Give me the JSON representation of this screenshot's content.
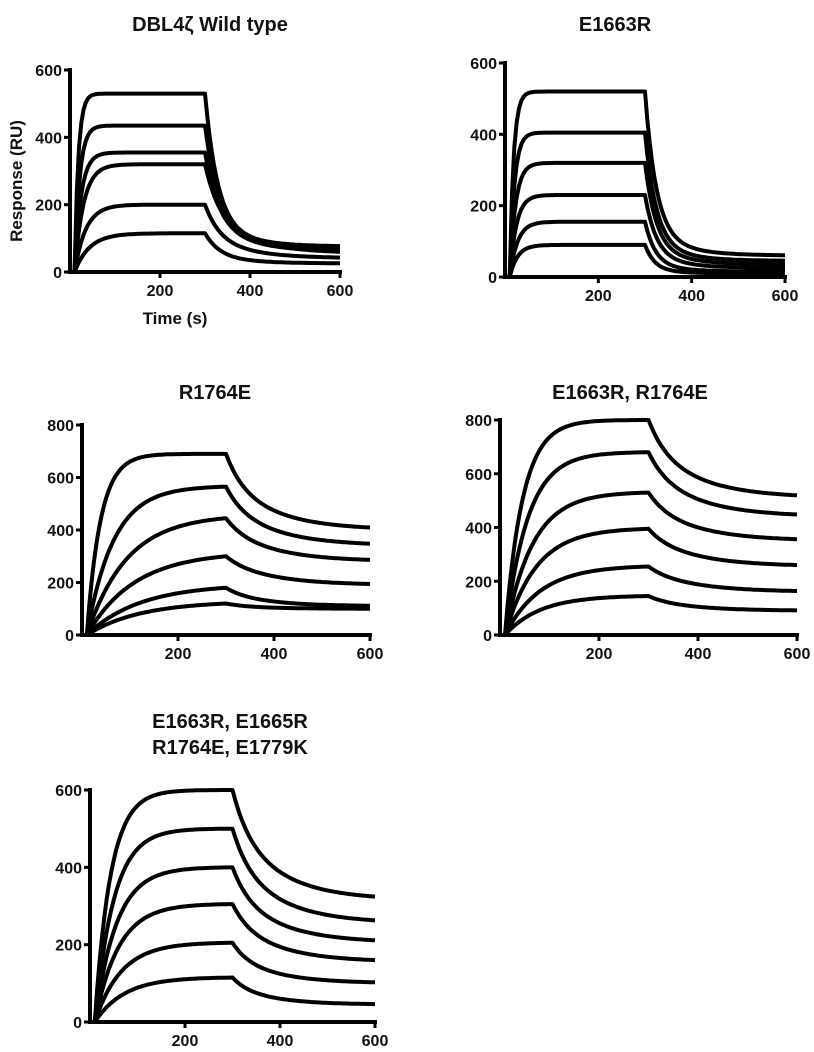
{
  "chart_data": [
    {
      "type": "line",
      "title": "DBL4ζ Wild type",
      "xlabel": "Time (s)",
      "ylabel": "Response (RU)",
      "xlim": [
        0,
        600
      ],
      "ylim": [
        0,
        600
      ],
      "xticks": [
        200,
        400,
        600
      ],
      "yticks": [
        0,
        200,
        400,
        600
      ],
      "injection_end_s": 300,
      "series": [
        {
          "values_at": {
            "t_300": 530,
            "t_600": 75
          }
        },
        {
          "values_at": {
            "t_300": 435,
            "t_600": 65
          }
        },
        {
          "values_at": {
            "t_300": 355,
            "t_600": 60
          }
        },
        {
          "values_at": {
            "t_300": 320,
            "t_600": 55
          }
        },
        {
          "values_at": {
            "t_300": 200,
            "t_600": 40
          }
        },
        {
          "values_at": {
            "t_300": 115,
            "t_600": 25
          }
        }
      ]
    },
    {
      "type": "line",
      "title": "E1663R",
      "xlabel": "",
      "ylabel": "",
      "xlim": [
        0,
        600
      ],
      "ylim": [
        0,
        600
      ],
      "xticks": [
        200,
        400,
        600
      ],
      "yticks": [
        0,
        200,
        400,
        600
      ],
      "injection_end_s": 300,
      "series": [
        {
          "values_at": {
            "t_300": 520,
            "t_600": 60
          }
        },
        {
          "values_at": {
            "t_300": 405,
            "t_600": 45
          }
        },
        {
          "values_at": {
            "t_300": 320,
            "t_600": 35
          }
        },
        {
          "values_at": {
            "t_300": 230,
            "t_600": 25
          }
        },
        {
          "values_at": {
            "t_300": 155,
            "t_600": 15
          }
        },
        {
          "values_at": {
            "t_300": 90,
            "t_600": 10
          }
        }
      ]
    },
    {
      "type": "line",
      "title": "R1764E",
      "xlabel": "",
      "ylabel": "",
      "xlim": [
        0,
        600
      ],
      "ylim": [
        0,
        800
      ],
      "xticks": [
        200,
        400,
        600
      ],
      "yticks": [
        0,
        200,
        400,
        600,
        800
      ],
      "injection_end_s": 300,
      "series": [
        {
          "values_at": {
            "t_300": 690,
            "t_600": 400
          }
        },
        {
          "values_at": {
            "t_300": 565,
            "t_600": 340
          }
        },
        {
          "values_at": {
            "t_300": 445,
            "t_600": 280
          }
        },
        {
          "values_at": {
            "t_300": 300,
            "t_600": 190
          }
        },
        {
          "values_at": {
            "t_300": 180,
            "t_600": 110
          }
        },
        {
          "values_at": {
            "t_300": 120,
            "t_600": 100
          }
        }
      ]
    },
    {
      "type": "line",
      "title": "E1663R, R1764E",
      "xlabel": "",
      "ylabel": "",
      "xlim": [
        0,
        600
      ],
      "ylim": [
        0,
        800
      ],
      "xticks": [
        200,
        400,
        600
      ],
      "yticks": [
        0,
        200,
        400,
        600,
        800
      ],
      "injection_end_s": 300,
      "series": [
        {
          "values_at": {
            "t_300": 800,
            "t_600": 510
          }
        },
        {
          "values_at": {
            "t_300": 680,
            "t_600": 440
          }
        },
        {
          "values_at": {
            "t_300": 530,
            "t_600": 350
          }
        },
        {
          "values_at": {
            "t_300": 395,
            "t_600": 255
          }
        },
        {
          "values_at": {
            "t_300": 255,
            "t_600": 160
          }
        },
        {
          "values_at": {
            "t_300": 145,
            "t_600": 90
          }
        }
      ]
    },
    {
      "type": "line",
      "title": "E1663R, E1665R",
      "subtitle": "R1764E, E1779K",
      "xlabel": "",
      "ylabel": "",
      "xlim": [
        0,
        600
      ],
      "ylim": [
        0,
        600
      ],
      "xticks": [
        200,
        400,
        600
      ],
      "yticks": [
        0,
        200,
        400,
        600
      ],
      "injection_end_s": 300,
      "series": [
        {
          "values_at": {
            "t_300": 600,
            "t_600": 315
          }
        },
        {
          "values_at": {
            "t_300": 500,
            "t_600": 255
          }
        },
        {
          "values_at": {
            "t_300": 400,
            "t_600": 205
          }
        },
        {
          "values_at": {
            "t_300": 305,
            "t_600": 155
          }
        },
        {
          "values_at": {
            "t_300": 205,
            "t_600": 100
          }
        },
        {
          "values_at": {
            "t_300": 115,
            "t_600": 45
          }
        }
      ]
    }
  ]
}
